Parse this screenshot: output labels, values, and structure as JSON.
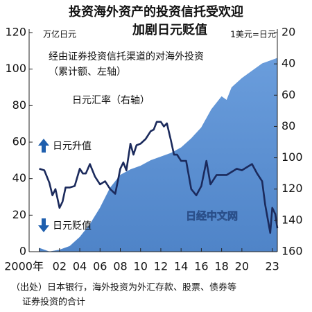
{
  "chart_data": {
    "type": "area-line",
    "title": [
      "投资海外资产的投资信托受欢迎",
      "加剧日元贬值"
    ],
    "y_label": "万亿日元",
    "y2_label": "1美元=日元",
    "annotations": [
      "（累计额、左轴）",
      "日元升值",
      "日元贬值",
      "日经中文网"
    ],
    "source": [
      "（出处）日本银行，海外投资为外汇存款、股票、债券等",
      "证券投资的合计"
    ],
    "xlim": [
      1999,
      2023.5
    ],
    "xticks": [
      {
        "value": 2000,
        "label": "2000年"
      },
      {
        "value": 2002,
        "label": "02"
      },
      {
        "value": 2004,
        "label": "04"
      },
      {
        "value": 2006,
        "label": "06"
      },
      {
        "value": 2008,
        "label": "08"
      },
      {
        "value": 2010,
        "label": "10"
      },
      {
        "value": 2012,
        "label": "12"
      },
      {
        "value": 2014,
        "label": "14"
      },
      {
        "value": 2016,
        "label": "16"
      },
      {
        "value": 2018,
        "label": "18"
      },
      {
        "value": 2020,
        "label": "20"
      },
      {
        "value": 2023,
        "label": "23"
      }
    ],
    "ylim": [
      0,
      120
    ],
    "yticks": [
      0,
      20,
      40,
      60,
      80,
      100,
      120
    ],
    "y2lim": [
      20,
      160
    ],
    "y2ticks": [
      20,
      40,
      60,
      80,
      100,
      120,
      140,
      160
    ],
    "y2_reversed": true,
    "series": [
      {
        "name": "经由证券投资信托渠道的对海外投资",
        "kind": "area",
        "color": "#5a8fd2",
        "x": [
          2000,
          2000.5,
          2001,
          2002,
          2003,
          2004,
          2005,
          2006,
          2007,
          2008,
          2009,
          2010,
          2011,
          2012,
          2013,
          2014,
          2015,
          2016,
          2017,
          2018,
          2018.5,
          2019,
          2020,
          2021,
          2022,
          2023,
          2023.5
        ],
        "values": [
          2,
          1,
          0,
          1,
          3,
          8,
          15,
          24,
          35,
          42,
          45,
          47,
          50,
          52,
          54,
          57,
          62,
          68,
          78,
          85,
          83,
          90,
          95,
          99,
          103,
          105,
          106
        ]
      },
      {
        "name": "日元汇率（右轴）",
        "kind": "line",
        "axis": "y2",
        "color": "#1b2a5c",
        "x": [
          2000,
          2000.5,
          2001,
          2001.3,
          2001.6,
          2002,
          2002.3,
          2002.6,
          2003,
          2003.5,
          2004,
          2004.3,
          2004.6,
          2005,
          2005.5,
          2006,
          2006.5,
          2007,
          2007.5,
          2008,
          2008.3,
          2008.6,
          2009,
          2009.3,
          2009.6,
          2010,
          2010.5,
          2011,
          2011.3,
          2011.6,
          2012,
          2012.3,
          2012.6,
          2013,
          2013.3,
          2013.6,
          2014,
          2014.5,
          2015,
          2015.5,
          2016,
          2016.5,
          2016.9,
          2017.5,
          2018,
          2018.5,
          2019,
          2019.5,
          2020,
          2020.5,
          2021,
          2021.5,
          2022,
          2022.3,
          2022.8,
          2023,
          2023.3,
          2023.5
        ],
        "values": [
          107,
          108,
          116,
          124,
          120,
          132,
          128,
          119,
          119,
          118,
          107,
          110,
          110,
          104,
          112,
          117,
          115,
          120,
          123,
          107,
          103,
          108,
          91,
          98,
          92,
          91,
          88,
          83,
          82,
          77,
          77,
          80,
          78,
          89,
          98,
          98,
          102,
          102,
          120,
          124,
          118,
          102,
          117,
          111,
          111,
          111,
          109,
          107,
          108,
          106,
          104,
          110,
          115,
          130,
          148,
          132,
          136,
          145
        ]
      }
    ]
  }
}
